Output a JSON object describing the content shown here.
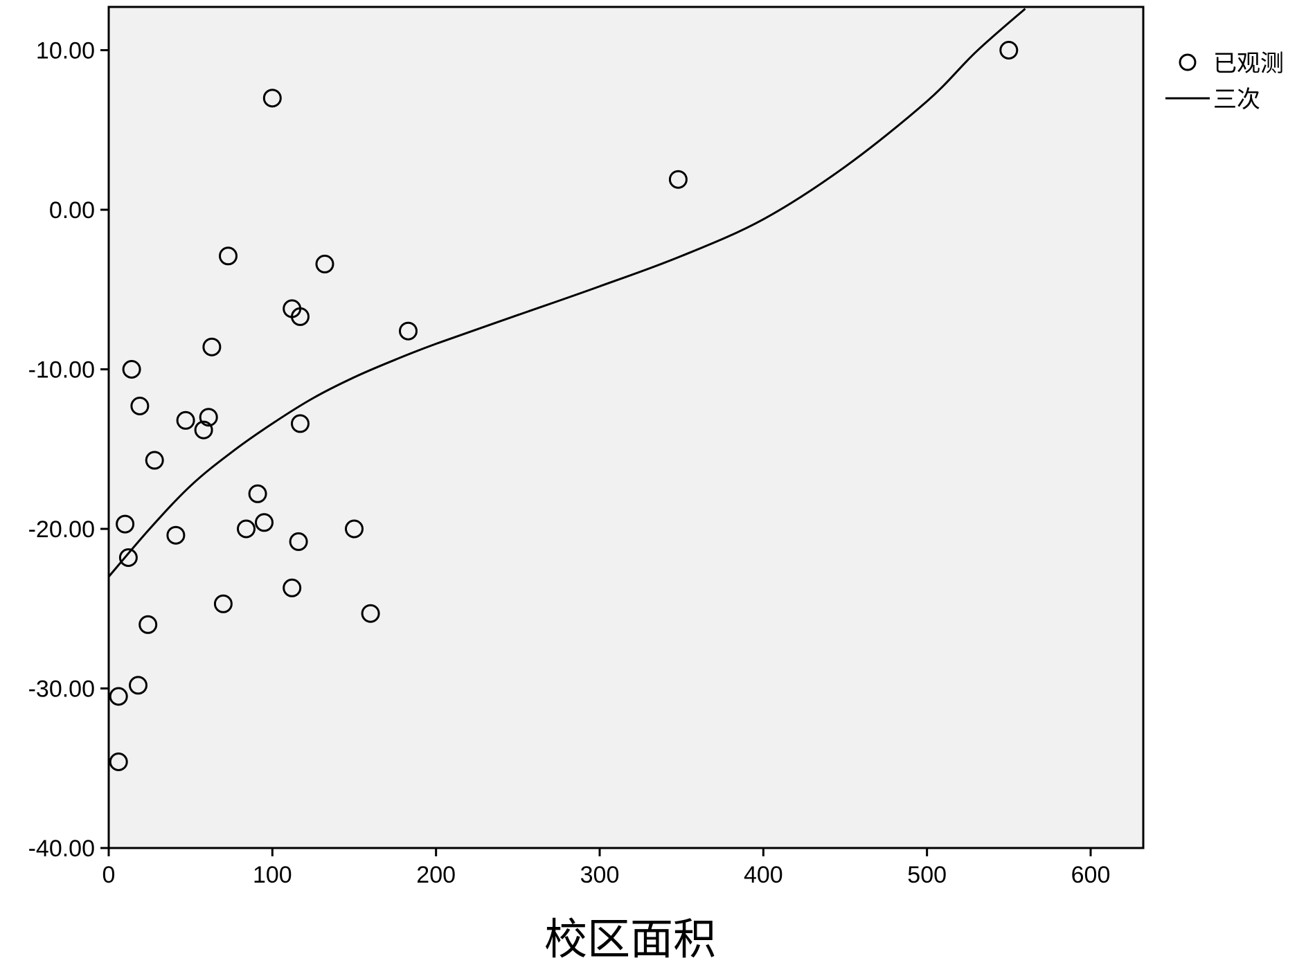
{
  "chart_data": {
    "type": "scatter",
    "title": "",
    "xlabel": "校区面积",
    "ylabel": "",
    "xlim": [
      0,
      630
    ],
    "ylim": [
      -40,
      12.8
    ],
    "x_ticks": [
      {
        "value": 0,
        "label": "0"
      },
      {
        "value": 100,
        "label": "100"
      },
      {
        "value": 200,
        "label": "200"
      },
      {
        "value": 300,
        "label": "300"
      },
      {
        "value": 400,
        "label": "400"
      },
      {
        "value": 500,
        "label": "500"
      },
      {
        "value": 600,
        "label": "600"
      }
    ],
    "y_ticks": [
      {
        "value": 10,
        "label": "10.00"
      },
      {
        "value": 0,
        "label": "0.00"
      },
      {
        "value": -10,
        "label": "-10.00"
      },
      {
        "value": -20,
        "label": "-20.00"
      },
      {
        "value": -30,
        "label": "-30.00"
      },
      {
        "value": -40,
        "label": "-40.00"
      }
    ],
    "grid": false,
    "legend_position": "right",
    "legend": [
      {
        "label": "已观测",
        "marker": "circle"
      },
      {
        "label": "三次",
        "marker": "line"
      }
    ],
    "series": [
      {
        "name": "已观测",
        "type": "scatter",
        "points": [
          {
            "x": 550,
            "y": 10.0
          },
          {
            "x": 100,
            "y": 7.0
          },
          {
            "x": 348,
            "y": 1.9
          },
          {
            "x": 73,
            "y": -2.9
          },
          {
            "x": 132,
            "y": -3.4
          },
          {
            "x": 112,
            "y": -6.2
          },
          {
            "x": 117,
            "y": -6.7
          },
          {
            "x": 183,
            "y": -7.6
          },
          {
            "x": 63,
            "y": -8.6
          },
          {
            "x": 14,
            "y": -10.0
          },
          {
            "x": 19,
            "y": -12.3
          },
          {
            "x": 47,
            "y": -13.2
          },
          {
            "x": 61,
            "y": -13.0
          },
          {
            "x": 58,
            "y": -13.8
          },
          {
            "x": 117,
            "y": -13.4
          },
          {
            "x": 28,
            "y": -15.7
          },
          {
            "x": 91,
            "y": -17.8
          },
          {
            "x": 10,
            "y": -19.7
          },
          {
            "x": 95,
            "y": -19.6
          },
          {
            "x": 84,
            "y": -20.0
          },
          {
            "x": 150,
            "y": -20.0
          },
          {
            "x": 41,
            "y": -20.4
          },
          {
            "x": 116,
            "y": -20.8
          },
          {
            "x": 12,
            "y": -21.8
          },
          {
            "x": 112,
            "y": -23.7
          },
          {
            "x": 70,
            "y": -24.7
          },
          {
            "x": 160,
            "y": -25.3
          },
          {
            "x": 24,
            "y": -26.0
          },
          {
            "x": 18,
            "y": -29.8
          },
          {
            "x": 6,
            "y": -30.5
          },
          {
            "x": 6,
            "y": -34.6
          }
        ]
      },
      {
        "name": "三次",
        "type": "line",
        "points": [
          {
            "x": 0,
            "y": -23.0
          },
          {
            "x": 25,
            "y": -20.0
          },
          {
            "x": 50,
            "y": -17.3
          },
          {
            "x": 75,
            "y": -15.2
          },
          {
            "x": 100,
            "y": -13.4
          },
          {
            "x": 125,
            "y": -11.8
          },
          {
            "x": 150,
            "y": -10.5
          },
          {
            "x": 175,
            "y": -9.4
          },
          {
            "x": 200,
            "y": -8.4
          },
          {
            "x": 250,
            "y": -6.6
          },
          {
            "x": 300,
            "y": -4.8
          },
          {
            "x": 350,
            "y": -2.9
          },
          {
            "x": 400,
            "y": -0.6
          },
          {
            "x": 450,
            "y": 2.7
          },
          {
            "x": 500,
            "y": 6.8
          },
          {
            "x": 530,
            "y": 9.9
          },
          {
            "x": 560,
            "y": 12.6
          }
        ]
      }
    ]
  }
}
